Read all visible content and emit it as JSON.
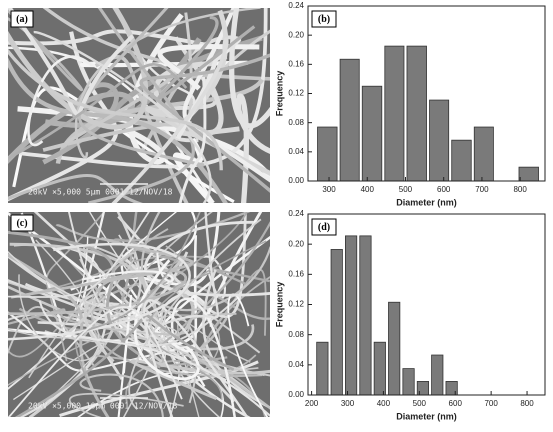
{
  "images": [
    {
      "label": "(a)",
      "caption": "20kV  ×5,000   5µm  0001 12/NOV/18"
    },
    {
      "label": "(c)",
      "caption": "20kV  ×5,000  10µm  0001 12/NOV/18"
    }
  ],
  "chart_data": [
    {
      "type": "histogram",
      "label": "(b)",
      "x_label": "Diameter (nm)",
      "y_label": "Frequency",
      "bins": [
        266,
        325,
        383,
        442,
        500,
        559,
        617,
        676,
        734,
        793,
        852
      ],
      "values": [
        0.074,
        0.167,
        0.13,
        0.185,
        0.185,
        0.111,
        0.056,
        0.074,
        0,
        0.019
      ],
      "color": "#7a7a7a",
      "xlim": [
        245,
        865
      ],
      "xticks": [
        300,
        400,
        500,
        600,
        700,
        800
      ],
      "ylim": [
        0,
        0.24
      ],
      "yticks": [
        {
          "value": 0,
          "label": "0.00"
        },
        {
          "value": 0.04,
          "label": "0.04"
        },
        {
          "value": 0.08,
          "label": "0.08"
        },
        {
          "value": 0.12,
          "label": "0.12"
        },
        {
          "value": 0.16,
          "label": "0.16"
        },
        {
          "value": 0.2,
          "label": "0.20"
        },
        {
          "value": 0.24,
          "label": "0.24"
        }
      ]
    },
    {
      "type": "histogram",
      "label": "(d)",
      "x_label": "Diameter (nm)",
      "y_label": "Frequency",
      "bins": [
        210,
        250,
        290,
        330,
        370,
        410,
        450,
        490,
        530,
        570,
        610
      ],
      "values": [
        0.07,
        0.193,
        0.211,
        0.211,
        0.07,
        0.123,
        0.035,
        0.018,
        0.053,
        0.018
      ],
      "color": "#7a7a7a",
      "xlim": [
        190,
        850
      ],
      "xticks": [
        200,
        300,
        400,
        500,
        600,
        700,
        800
      ],
      "ylim": [
        0,
        0.24
      ],
      "yticks": [
        {
          "value": 0,
          "label": "0.00"
        },
        {
          "value": 0.04,
          "label": "0.04"
        },
        {
          "value": 0.08,
          "label": "0.08"
        },
        {
          "value": 0.12,
          "label": "0.12"
        },
        {
          "value": 0.16,
          "label": "0.16"
        },
        {
          "value": 0.2,
          "label": "0.20"
        },
        {
          "value": 0.24,
          "label": "0.24"
        }
      ]
    }
  ]
}
